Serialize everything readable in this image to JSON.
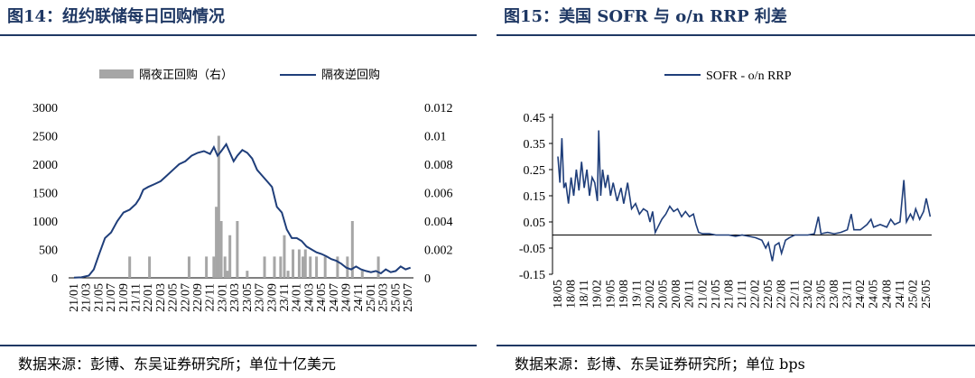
{
  "panels": [
    {
      "title": "图14：纽约联储每日回购情况",
      "source": "数据来源：彭博、东吴证券研究所；单位十亿美元"
    },
    {
      "title": "图15：美国 SOFR 与 o/n RRP 利差",
      "source": "数据来源：彭博、东吴证券研究所；单位 bps"
    }
  ],
  "colors": {
    "line": "#1f3e7a",
    "bar": "#a6a6a6",
    "title": "#1f3864"
  },
  "chart_data": [
    {
      "type": "bar+line",
      "categories": [
        "21/01",
        "21/03",
        "21/05",
        "21/07",
        "21/09",
        "21/11",
        "22/01",
        "22/03",
        "22/05",
        "22/07",
        "22/09",
        "22/11",
        "23/01",
        "23/03",
        "23/05",
        "23/07",
        "23/09",
        "23/11",
        "24/01",
        "24/03",
        "24/05",
        "24/07",
        "24/09",
        "24/11",
        "25/01",
        "25/03",
        "25/05",
        "25/07"
      ],
      "y_left": {
        "ticks": [
          "0",
          "500",
          "1000",
          "1500",
          "2000",
          "2500",
          "3000"
        ],
        "ylim": [
          0,
          3000
        ]
      },
      "y_right": {
        "ticks": [
          "0",
          "0.002",
          "0.004",
          "0.006",
          "0.008",
          "0.01",
          "0.012"
        ],
        "ylim": [
          0,
          0.012
        ]
      },
      "legend": [
        "隔夜正回购（右）",
        "隔夜逆回购"
      ],
      "legend_position": "top-center",
      "series": [
        {
          "name": "隔夜逆回购",
          "type": "line",
          "axis": "left",
          "points": [
            [
              0,
              5
            ],
            [
              0.6,
              10
            ],
            [
              1.2,
              40
            ],
            [
              1.6,
              150
            ],
            [
              2.0,
              400
            ],
            [
              2.5,
              700
            ],
            [
              3.0,
              800
            ],
            [
              3.5,
              1000
            ],
            [
              4.0,
              1150
            ],
            [
              4.5,
              1200
            ],
            [
              5.0,
              1300
            ],
            [
              5.3,
              1400
            ],
            [
              5.6,
              1550
            ],
            [
              6.0,
              1600
            ],
            [
              6.5,
              1650
            ],
            [
              7.0,
              1700
            ],
            [
              7.5,
              1800
            ],
            [
              8.0,
              1900
            ],
            [
              8.5,
              2000
            ],
            [
              9.0,
              2050
            ],
            [
              9.5,
              2150
            ],
            [
              10.0,
              2200
            ],
            [
              10.5,
              2230
            ],
            [
              11.0,
              2180
            ],
            [
              11.3,
              2300
            ],
            [
              11.6,
              2150
            ],
            [
              11.9,
              2230
            ],
            [
              12.3,
              2350
            ],
            [
              12.6,
              2200
            ],
            [
              12.9,
              2050
            ],
            [
              13.2,
              2150
            ],
            [
              13.6,
              2250
            ],
            [
              14.0,
              2200
            ],
            [
              14.4,
              2100
            ],
            [
              14.8,
              1900
            ],
            [
              15.2,
              1800
            ],
            [
              15.6,
              1700
            ],
            [
              16.0,
              1600
            ],
            [
              16.4,
              1250
            ],
            [
              16.8,
              1150
            ],
            [
              17.2,
              850
            ],
            [
              17.6,
              700
            ],
            [
              18.0,
              700
            ],
            [
              18.4,
              650
            ],
            [
              18.8,
              550
            ],
            [
              19.2,
              500
            ],
            [
              19.6,
              450
            ],
            [
              20.0,
              420
            ],
            [
              20.4,
              380
            ],
            [
              20.8,
              330
            ],
            [
              21.2,
              300
            ],
            [
              21.6,
              250
            ],
            [
              22.0,
              180
            ],
            [
              22.4,
              150
            ],
            [
              22.8,
              200
            ],
            [
              23.2,
              150
            ],
            [
              23.6,
              120
            ],
            [
              24.0,
              100
            ],
            [
              24.4,
              120
            ],
            [
              24.8,
              80
            ],
            [
              25.2,
              150
            ],
            [
              25.6,
              100
            ],
            [
              26.0,
              120
            ],
            [
              26.4,
              200
            ],
            [
              26.8,
              150
            ],
            [
              27.2,
              180
            ]
          ],
          "color": "#1f3e7a"
        },
        {
          "name": "隔夜正回购（右）",
          "type": "bar",
          "axis": "right",
          "points": [
            [
              4.5,
              0.0015
            ],
            [
              6.1,
              0.0015
            ],
            [
              9.3,
              0.0015
            ],
            [
              10.7,
              0.0015
            ],
            [
              11.3,
              0.0015
            ],
            [
              11.5,
              0.005
            ],
            [
              11.7,
              0.01
            ],
            [
              11.9,
              0.004
            ],
            [
              12.2,
              0.0015
            ],
            [
              12.4,
              0.0005
            ],
            [
              12.6,
              0.003
            ],
            [
              13.2,
              0.004
            ],
            [
              14.0,
              0.0005
            ],
            [
              15.4,
              0.0015
            ],
            [
              16.2,
              0.0015
            ],
            [
              16.7,
              0.0015
            ],
            [
              17.0,
              0.003
            ],
            [
              17.3,
              0.0005
            ],
            [
              17.7,
              0.002
            ],
            [
              18.2,
              0.002
            ],
            [
              18.5,
              0.0015
            ],
            [
              18.7,
              0.002
            ],
            [
              19.1,
              0.0015
            ],
            [
              19.6,
              0.0015
            ],
            [
              20.3,
              0.0015
            ],
            [
              21.3,
              0.0015
            ],
            [
              22.1,
              0.0015
            ],
            [
              22.5,
              0.004
            ],
            [
              23.3,
              0.0005
            ],
            [
              24.6,
              0.0015
            ]
          ],
          "color": "#a6a6a6"
        }
      ]
    },
    {
      "type": "line",
      "categories": [
        "18/05",
        "18/08",
        "18/11",
        "19/02",
        "19/05",
        "19/08",
        "19/11",
        "20/02",
        "20/05",
        "20/08",
        "20/11",
        "21/02",
        "21/05",
        "21/08",
        "21/11",
        "22/02",
        "22/05",
        "22/08",
        "22/11",
        "23/02",
        "23/05",
        "23/08",
        "23/11",
        "24/02",
        "24/05",
        "24/08",
        "24/11",
        "25/02",
        "25/05"
      ],
      "y": {
        "ticks": [
          "-0.15",
          "-0.05",
          "0.05",
          "0.15",
          "0.25",
          "0.35",
          "0.45"
        ],
        "ylim": [
          -0.15,
          0.45
        ]
      },
      "legend": [
        "SOFR - o/n RRP"
      ],
      "legend_position": "top-center",
      "series": [
        {
          "name": "SOFR - o/n RRP",
          "points": [
            [
              0,
              0.3
            ],
            [
              0.15,
              0.2
            ],
            [
              0.3,
              0.37
            ],
            [
              0.45,
              0.18
            ],
            [
              0.6,
              0.2
            ],
            [
              0.8,
              0.12
            ],
            [
              1.0,
              0.22
            ],
            [
              1.2,
              0.15
            ],
            [
              1.4,
              0.25
            ],
            [
              1.6,
              0.17
            ],
            [
              1.8,
              0.28
            ],
            [
              2.0,
              0.18
            ],
            [
              2.2,
              0.25
            ],
            [
              2.4,
              0.15
            ],
            [
              2.6,
              0.22
            ],
            [
              2.8,
              0.2
            ],
            [
              3.0,
              0.13
            ],
            [
              3.1,
              0.4
            ],
            [
              3.25,
              0.15
            ],
            [
              3.4,
              0.25
            ],
            [
              3.6,
              0.18
            ],
            [
              3.8,
              0.23
            ],
            [
              4.0,
              0.15
            ],
            [
              4.2,
              0.2
            ],
            [
              4.5,
              0.13
            ],
            [
              4.8,
              0.18
            ],
            [
              5.0,
              0.12
            ],
            [
              5.3,
              0.2
            ],
            [
              5.6,
              0.1
            ],
            [
              5.9,
              0.12
            ],
            [
              6.2,
              0.08
            ],
            [
              6.5,
              0.1
            ],
            [
              6.8,
              0.09
            ],
            [
              7.0,
              0.05
            ],
            [
              7.2,
              0.09
            ],
            [
              7.4,
              0.01
            ],
            [
              7.6,
              0.03
            ],
            [
              7.9,
              0.06
            ],
            [
              8.2,
              0.08
            ],
            [
              8.5,
              0.11
            ],
            [
              8.8,
              0.09
            ],
            [
              9.1,
              0.1
            ],
            [
              9.4,
              0.07
            ],
            [
              9.7,
              0.09
            ],
            [
              10.0,
              0.07
            ],
            [
              10.3,
              0.08
            ],
            [
              10.5,
              0.04
            ],
            [
              10.7,
              0.01
            ],
            [
              11.0,
              0.005
            ],
            [
              11.5,
              0.005
            ],
            [
              12.0,
              0.0
            ],
            [
              12.5,
              0.0
            ],
            [
              13.0,
              0.0
            ],
            [
              13.5,
              -0.005
            ],
            [
              14.0,
              0.0
            ],
            [
              14.5,
              -0.005
            ],
            [
              15.0,
              -0.01
            ],
            [
              15.5,
              -0.02
            ],
            [
              15.8,
              -0.05
            ],
            [
              16.0,
              -0.03
            ],
            [
              16.3,
              -0.1
            ],
            [
              16.5,
              -0.04
            ],
            [
              16.8,
              -0.03
            ],
            [
              17.0,
              -0.07
            ],
            [
              17.3,
              -0.02
            ],
            [
              17.6,
              -0.01
            ],
            [
              18.0,
              0.0
            ],
            [
              18.5,
              0.0
            ],
            [
              19.0,
              0.0
            ],
            [
              19.5,
              0.005
            ],
            [
              19.8,
              0.07
            ],
            [
              20.0,
              0.005
            ],
            [
              20.5,
              0.01
            ],
            [
              21.0,
              0.005
            ],
            [
              21.5,
              0.01
            ],
            [
              22.0,
              0.02
            ],
            [
              22.3,
              0.08
            ],
            [
              22.5,
              0.02
            ],
            [
              23.0,
              0.02
            ],
            [
              23.5,
              0.04
            ],
            [
              23.8,
              0.06
            ],
            [
              24.0,
              0.03
            ],
            [
              24.5,
              0.04
            ],
            [
              25.0,
              0.03
            ],
            [
              25.3,
              0.06
            ],
            [
              25.6,
              0.04
            ],
            [
              26.0,
              0.05
            ],
            [
              26.3,
              0.21
            ],
            [
              26.5,
              0.05
            ],
            [
              26.8,
              0.08
            ],
            [
              27.0,
              0.06
            ],
            [
              27.2,
              0.1
            ],
            [
              27.5,
              0.06
            ],
            [
              27.8,
              0.09
            ],
            [
              28.0,
              0.14
            ],
            [
              28.3,
              0.07
            ]
          ],
          "color": "#1f3e7a"
        }
      ]
    }
  ]
}
